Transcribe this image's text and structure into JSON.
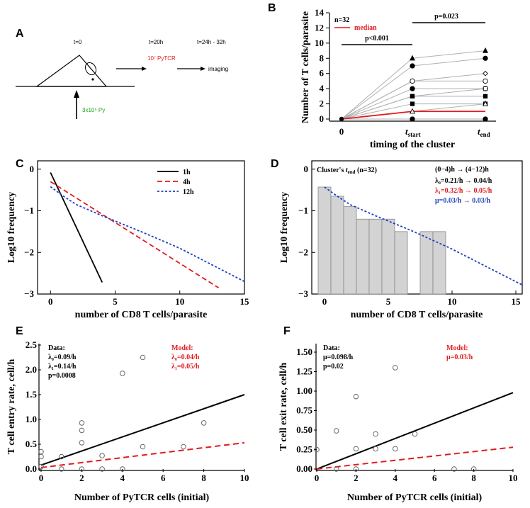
{
  "figure": {
    "panel_a": {
      "letter": "A",
      "t0": "t=0",
      "t20": "t=20h",
      "t24": "t=24h - 32h",
      "pytcr": "10⁷ PyTCR",
      "py": "3x10⁵ Py",
      "imaging": "imaging",
      "colors": {
        "pytcr": "#e31a1c",
        "py": "#1aa31a"
      }
    },
    "panel_b": {
      "letter": "B"
    },
    "panel_c": {
      "letter": "C"
    },
    "panel_d": {
      "letter": "D"
    },
    "panel_e": {
      "letter": "E"
    },
    "panel_f": {
      "letter": "F"
    }
  },
  "chart_data": [
    {
      "id": "B",
      "type": "line",
      "categories": [
        "0",
        "t_start",
        "t_end"
      ],
      "ylabel": "Number of T cells/parasite",
      "xlabel": "timing of the cluster",
      "xlabel_italic_t": "t",
      "xlabel_rest": "",
      "tick_labels": {
        "c0": "0",
        "c1_t": "t",
        "c1_sub": "start",
        "c2_t": "t",
        "c2_sub": "end"
      },
      "ylim": [
        0,
        14
      ],
      "yticks": [
        0,
        2,
        4,
        6,
        8,
        10,
        12,
        14
      ],
      "n_text": "n=32",
      "median_label": "median",
      "sig1": "p<0.001",
      "sig2": "p=0.023",
      "series": [
        {
          "name": "c1",
          "values": [
            0,
            8,
            9
          ],
          "marker": "triangle"
        },
        {
          "name": "c2",
          "values": [
            0,
            7,
            8
          ],
          "marker": "circle"
        },
        {
          "name": "c3",
          "values": [
            0,
            5,
            6
          ],
          "marker": "diamond-open"
        },
        {
          "name": "c4",
          "values": [
            0,
            5,
            5
          ],
          "marker": "circle-open"
        },
        {
          "name": "c5",
          "values": [
            0,
            4,
            4
          ],
          "marker": "circle"
        },
        {
          "name": "c6",
          "values": [
            0,
            3,
            4
          ],
          "marker": "square-open"
        },
        {
          "name": "c7",
          "values": [
            0,
            3,
            3
          ],
          "marker": "square"
        },
        {
          "name": "c8",
          "values": [
            0,
            2,
            2
          ],
          "marker": "square"
        },
        {
          "name": "c9",
          "values": [
            0,
            1,
            2
          ],
          "marker": "triangle-open"
        },
        {
          "name": "c10",
          "values": [
            0,
            0,
            0
          ],
          "marker": "circle"
        }
      ],
      "median": [
        0,
        1,
        1
      ],
      "colors": {
        "median": "#e31a1c",
        "lines": "#b0b0b0"
      }
    },
    {
      "id": "C",
      "type": "line",
      "xlabel": "number of CD8 T cells/parasite",
      "ylabel": "Log10 frequency",
      "xlim": [
        -1,
        15
      ],
      "ylim": [
        -3,
        0.2
      ],
      "xticks": [
        0,
        5,
        10,
        15
      ],
      "yticks": [
        -3,
        -2,
        -1,
        0
      ],
      "ytick_labels": [
        "−3",
        "−2",
        "−1",
        "0"
      ],
      "series": [
        {
          "name": "1h",
          "x": [
            0,
            4
          ],
          "y": [
            -0.08,
            -2.72
          ],
          "color": "#000000",
          "dash": "solid"
        },
        {
          "name": "4h",
          "x": [
            0,
            13
          ],
          "y": [
            -0.3,
            -2.85
          ],
          "color": "#e31a1c",
          "dash": "long"
        },
        {
          "name": "12h",
          "x": [
            0,
            1,
            2,
            4,
            7,
            10,
            15
          ],
          "y": [
            -0.42,
            -0.65,
            -0.85,
            -1.12,
            -1.5,
            -1.9,
            -2.7
          ],
          "color": "#1f3fbf",
          "dash": "short"
        }
      ]
    },
    {
      "id": "D",
      "type": "bar",
      "title": "Cluster's t_end (n=32)",
      "title_pre": "Cluster's ",
      "title_t": "t",
      "title_sub": "end",
      "title_post": " (n=32)",
      "xlabel": "number of CD8 T cells/parasite",
      "ylabel": "Log10 frequency",
      "xlim": [
        -1,
        15.5
      ],
      "ylim": [
        -3,
        0.2
      ],
      "xticks": [
        0,
        5,
        10,
        15
      ],
      "yticks": [
        -3,
        -2,
        -1,
        0
      ],
      "ytick_labels": [
        "−3",
        "−2",
        "−1",
        "0"
      ],
      "categories": [
        0,
        1,
        2,
        3,
        4,
        5,
        6,
        8,
        9
      ],
      "values": [
        -0.43,
        -0.65,
        -0.9,
        -1.2,
        -1.2,
        -1.2,
        -1.5,
        -1.5,
        -1.5
      ],
      "fit": {
        "x": [
          0,
          1,
          2,
          4,
          7,
          10,
          15.5
        ],
        "y": [
          -0.43,
          -0.65,
          -0.85,
          -1.12,
          -1.5,
          -1.92,
          -2.78
        ],
        "color": "#1f3fbf"
      },
      "legend": {
        "header": "(0−4)h → (4−12)h",
        "l0": "λ₀=0.21/h → 0.04/h",
        "l1": "λ₁=0.32/h → 0.05/h",
        "mu": "μ=0.03/h → 0.03/h"
      }
    },
    {
      "id": "E",
      "type": "scatter",
      "xlabel": "Number of PyTCR cells (initial)",
      "ylabel": "T cell entry rate, cell/h",
      "xlim": [
        0,
        10
      ],
      "ylim": [
        0,
        2.5
      ],
      "xticks": [
        0,
        2,
        4,
        6,
        8,
        10
      ],
      "yticks": [
        0,
        0.5,
        1.0,
        1.5,
        2.0,
        2.5
      ],
      "ytick_labels": [
        "0.0",
        "0.5",
        "1.0",
        "1.5",
        "2.0",
        "2.5"
      ],
      "points": [
        [
          0,
          0.35
        ],
        [
          0,
          0.25
        ],
        [
          0,
          0.05
        ],
        [
          1,
          0.25
        ],
        [
          1,
          0.0
        ],
        [
          2,
          0.93
        ],
        [
          2,
          0.78
        ],
        [
          2,
          0.53
        ],
        [
          2,
          0.0
        ],
        [
          3,
          0.27
        ],
        [
          3,
          0.0
        ],
        [
          4,
          1.93
        ],
        [
          4,
          0.0
        ],
        [
          5,
          2.25
        ],
        [
          5,
          0.45
        ],
        [
          7,
          0.45
        ],
        [
          8,
          0.93
        ]
      ],
      "data_line": {
        "x": [
          0,
          10
        ],
        "y": [
          0.08,
          1.5
        ]
      },
      "model_line": {
        "x": [
          0,
          10
        ],
        "y": [
          0.03,
          0.53
        ]
      },
      "data_text": [
        "Data:",
        "λ₀=0.09/h",
        "λ₁=0.14/h",
        "p=0.0008"
      ],
      "model_text": [
        "Model:",
        "λ₀=0.04/h",
        "λ₁=0.05/h"
      ]
    },
    {
      "id": "F",
      "type": "scatter",
      "xlabel": "Number of PyTCR cells (initial)",
      "ylabel": "T cell exit rate, cell/h",
      "xlim": [
        0,
        10
      ],
      "ylim": [
        0,
        1.5
      ],
      "xticks": [
        0,
        2,
        4,
        6,
        8,
        10
      ],
      "yticks": [
        0,
        0.25,
        0.5,
        0.75,
        1.0,
        1.25,
        1.5
      ],
      "ytick_labels": [
        "0.00",
        "0.25",
        "0.50",
        "0.75",
        "1.00",
        "1.25",
        "1.50"
      ],
      "points": [
        [
          0,
          0.25
        ],
        [
          1,
          0.49
        ],
        [
          1,
          0.0
        ],
        [
          2,
          0.93
        ],
        [
          2,
          0.26
        ],
        [
          2,
          0.0
        ],
        [
          3,
          0.45
        ],
        [
          3,
          0.26
        ],
        [
          4,
          1.3
        ],
        [
          4,
          0.26
        ],
        [
          5,
          0.45
        ],
        [
          7,
          0.0
        ],
        [
          8,
          0.0
        ]
      ],
      "data_line": {
        "x": [
          0,
          10
        ],
        "y": [
          0.0,
          0.98
        ]
      },
      "model_line": {
        "x": [
          0,
          10
        ],
        "y": [
          0.0,
          0.28
        ]
      },
      "data_text": [
        "Data:",
        "μ=0.098/h",
        "p=0.02"
      ],
      "model_text": [
        "Model:",
        "μ=0.03/h"
      ]
    }
  ]
}
